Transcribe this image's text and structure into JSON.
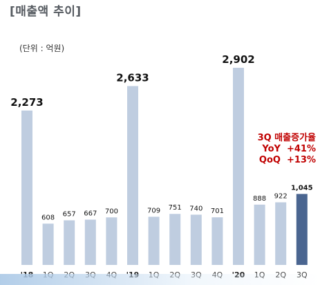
{
  "page": {
    "title": "[매출액 추이]",
    "unit": "(단위 : 억원)",
    "annotation": {
      "line1": "3Q 매출증가율",
      "line2": "YoY  +41%",
      "line3": "QoQ  +13%"
    }
  },
  "chart_data": {
    "type": "bar",
    "categories": [
      "'18",
      "1Q",
      "2Q",
      "3Q",
      "4Q",
      "'19",
      "1Q",
      "2Q",
      "3Q",
      "4Q",
      "'20",
      "1Q",
      "2Q",
      "3Q"
    ],
    "values": [
      2273,
      608,
      657,
      667,
      700,
      2633,
      709,
      751,
      740,
      701,
      2902,
      888,
      922,
      1045
    ],
    "value_labels": [
      "2,273",
      "608",
      "657",
      "667",
      "700",
      "2,633",
      "709",
      "751",
      "740",
      "701",
      "2,902",
      "888",
      "922",
      "1,045"
    ],
    "bold_categories": [
      "'18",
      "'19",
      "'20"
    ],
    "highlight_index": 13,
    "title": "[매출액 추이]",
    "xlabel": "",
    "ylabel": "",
    "ylim": [
      0,
      3000
    ],
    "grid": false,
    "colors": {
      "bar": "#bfcde0",
      "highlight": "#4a6590",
      "label": "#111111",
      "axis_label": "#444444"
    }
  }
}
